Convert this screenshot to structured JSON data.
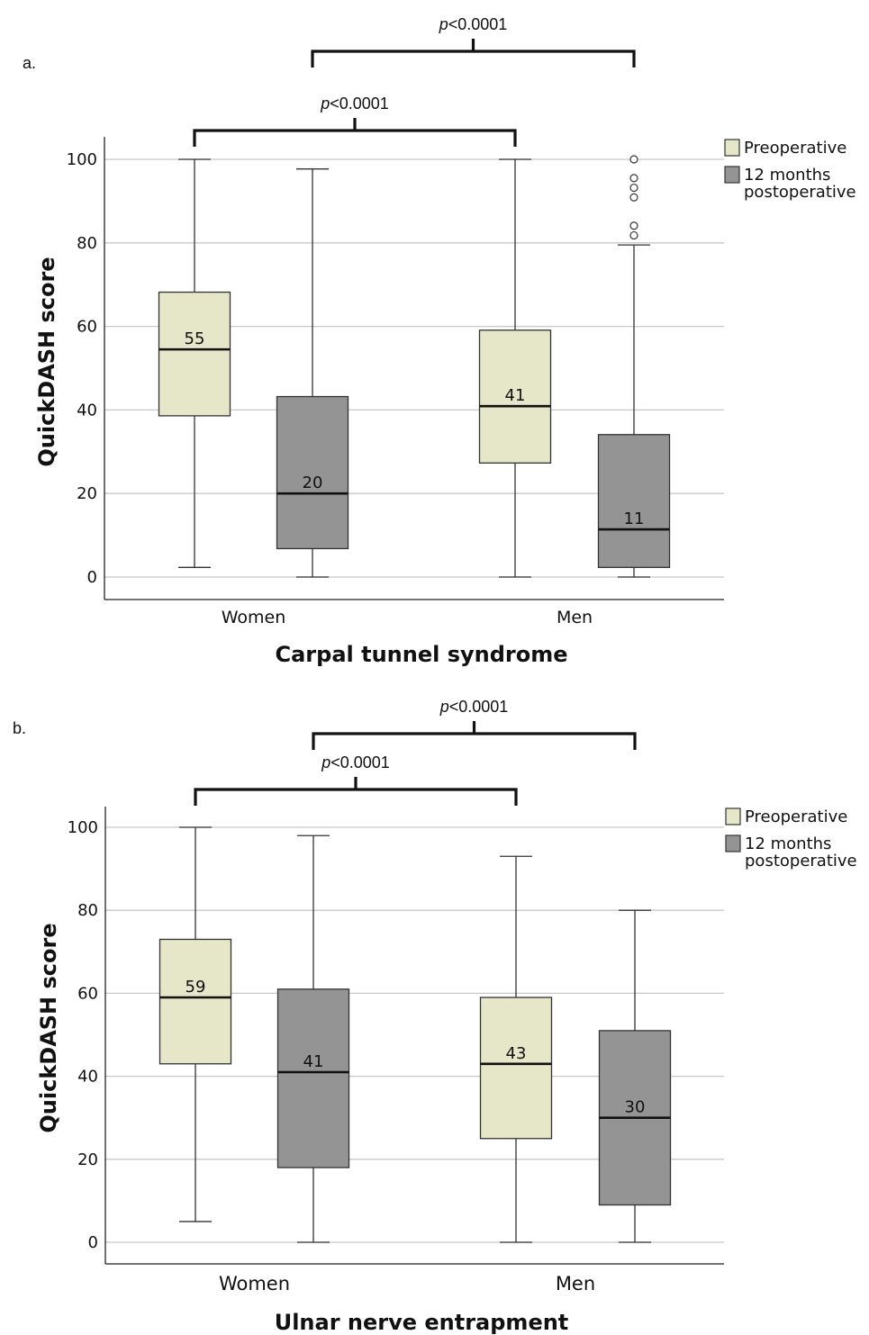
{
  "chart_data": [
    {
      "type": "box",
      "panel_label": "a.",
      "xlabel": "Carpal tunnel syndrome",
      "ylabel": "QuickDASH score",
      "ylim": [
        0,
        100
      ],
      "yticks": [
        0,
        20,
        40,
        60,
        80,
        100
      ],
      "grid": true,
      "legend_position": "top-right",
      "categories": [
        "Women",
        "Men"
      ],
      "series": [
        {
          "name": "Preoperative",
          "color": "#e6e6c9",
          "boxes": [
            {
              "min": 2.3,
              "q1": 38.6,
              "median": 54.5,
              "q3": 68.2,
              "max": 100,
              "label": "55",
              "outliers": []
            },
            {
              "min": 0,
              "q1": 27.3,
              "median": 40.9,
              "q3": 59.1,
              "max": 100,
              "label": "41",
              "outliers": []
            }
          ]
        },
        {
          "name": "12 months postoperative",
          "name_lines": [
            "12 months",
            "postoperative"
          ],
          "color": "#949494",
          "boxes": [
            {
              "min": 0,
              "q1": 6.8,
              "median": 20,
              "q3": 43.2,
              "max": 97.7,
              "label": "20",
              "outliers": []
            },
            {
              "min": 0,
              "q1": 2.3,
              "median": 11.4,
              "q3": 34.1,
              "max": 79.5,
              "label": "11",
              "outliers": [
                81.8,
                84.1,
                90.9,
                93.2,
                95.5,
                100
              ]
            }
          ]
        }
      ],
      "significance": [
        {
          "text": "<0.0001",
          "prefix": "p",
          "from": {
            "cat": 0,
            "ser": 0
          },
          "to": {
            "cat": 1,
            "ser": 0
          },
          "level": 1
        },
        {
          "text": "<0.0001",
          "prefix": "p",
          "from": {
            "cat": 0,
            "ser": 1
          },
          "to": {
            "cat": 1,
            "ser": 1
          },
          "level": 2
        }
      ]
    },
    {
      "type": "box",
      "panel_label": "b.",
      "xlabel": "Ulnar nerve entrapment",
      "ylabel": "QuickDASH score",
      "ylim": [
        0,
        100
      ],
      "yticks": [
        0,
        20,
        40,
        60,
        80,
        100
      ],
      "grid": true,
      "legend_position": "top-right",
      "categories": [
        "Women",
        "Men"
      ],
      "series": [
        {
          "name": "Preoperative",
          "color": "#e6e6c9",
          "boxes": [
            {
              "min": 5,
              "q1": 43,
              "median": 59,
              "q3": 73,
              "max": 100,
              "label": "59",
              "outliers": []
            },
            {
              "min": 0,
              "q1": 25,
              "median": 43,
              "q3": 59,
              "max": 93,
              "label": "43",
              "outliers": []
            }
          ]
        },
        {
          "name": "12 months postoperative",
          "name_lines": [
            "12 months",
            "postoperative"
          ],
          "color": "#949494",
          "boxes": [
            {
              "min": 0,
              "q1": 18,
              "median": 41,
              "q3": 61,
              "max": 98,
              "label": "41",
              "outliers": []
            },
            {
              "min": 0,
              "q1": 9,
              "median": 30,
              "q3": 51,
              "max": 80,
              "label": "30",
              "outliers": []
            }
          ]
        }
      ],
      "significance": [
        {
          "text": "<0.0001",
          "prefix": "p",
          "from": {
            "cat": 0,
            "ser": 0
          },
          "to": {
            "cat": 1,
            "ser": 0
          },
          "level": 1
        },
        {
          "text": "<0.0001",
          "prefix": "p",
          "from": {
            "cat": 0,
            "ser": 1
          },
          "to": {
            "cat": 1,
            "ser": 1
          },
          "level": 2
        }
      ]
    }
  ]
}
